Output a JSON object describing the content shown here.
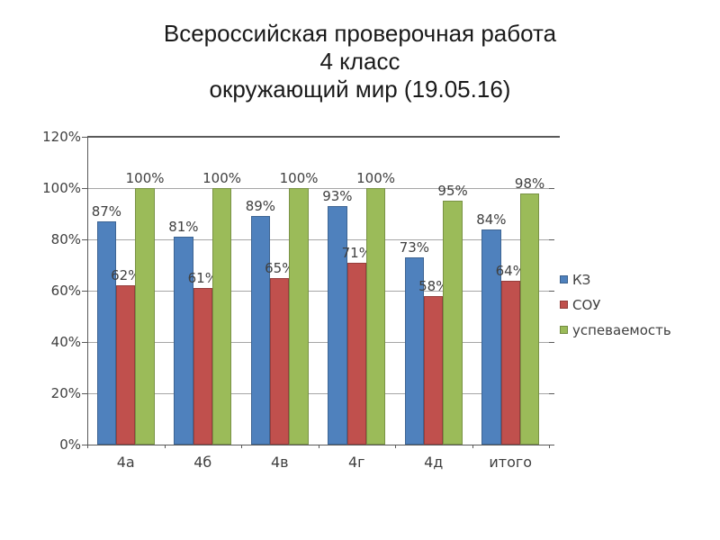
{
  "slide": {
    "title_lines": [
      "Всероссийская проверочная работа",
      "4 класс",
      "окружающий мир (19.05.16)"
    ]
  },
  "chart_data": {
    "type": "bar",
    "title": "",
    "categories": [
      "4а",
      "4б",
      "4в",
      "4г",
      "4д",
      "итого"
    ],
    "series": [
      {
        "name": "КЗ",
        "color": "#4F81BD",
        "values": [
          87,
          81,
          89,
          93,
          73,
          84
        ]
      },
      {
        "name": "СОУ",
        "color": "#C0504D",
        "values": [
          62,
          61,
          65,
          71,
          58,
          64
        ]
      },
      {
        "name": "успеваемость",
        "color": "#9BBB59",
        "values": [
          100,
          100,
          100,
          100,
          95,
          98
        ]
      }
    ],
    "value_suffix": "%",
    "data_labels": true,
    "y_axis": {
      "min": 0,
      "max": 120,
      "step": 20,
      "tick_labels": [
        "0%",
        "20%",
        "40%",
        "60%",
        "80%",
        "100%",
        "120%"
      ]
    },
    "grid": true,
    "legend_position": "right",
    "style_colors": {
      "grid": "#a6a6a6",
      "axis": "#595959",
      "tick_label": "#3f3f3f",
      "data_label": "#404040",
      "background": "#ffffff"
    }
  }
}
